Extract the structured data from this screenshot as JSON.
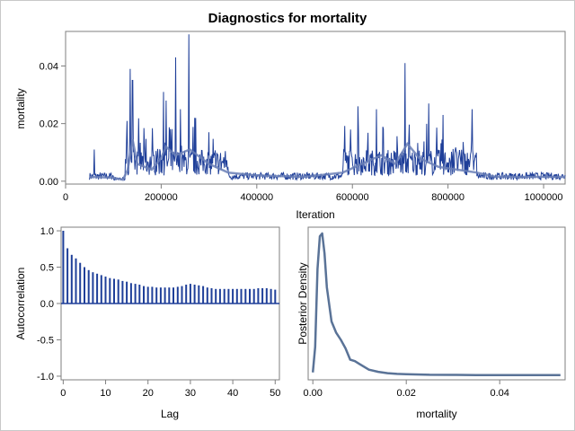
{
  "title": "Diagnostics for mortality",
  "colors": {
    "trace": "#1f3f99",
    "trace_smooth": "#6a7fb6",
    "acf_bar": "#1f3f99",
    "density": "#5a7397",
    "frame": "#7f7f7f"
  },
  "chart_data": [
    {
      "type": "line",
      "name": "trace",
      "xlabel": "Iteration",
      "ylabel": "mortality",
      "xlim": [
        0,
        1045000
      ],
      "ylim": [
        -0.001,
        0.052
      ],
      "xticks": [
        0,
        200000,
        400000,
        600000,
        800000,
        1000000
      ],
      "xtick_labels": [
        "0",
        "200000",
        "400000",
        "600000",
        "800000",
        "1000000"
      ],
      "yticks": [
        0,
        0.02,
        0.04
      ],
      "ytick_labels": [
        "0.00",
        "0.02",
        "0.04"
      ],
      "x_start": 50000,
      "x_end": 1045000,
      "burst_regions": [
        [
          125000,
          340000
        ],
        [
          580000,
          860000
        ]
      ],
      "peaks": [
        {
          "x": 60000,
          "y": 0.011
        },
        {
          "x": 135000,
          "y": 0.039
        },
        {
          "x": 140000,
          "y": 0.035
        },
        {
          "x": 205000,
          "y": 0.031
        },
        {
          "x": 210000,
          "y": 0.028
        },
        {
          "x": 230000,
          "y": 0.043
        },
        {
          "x": 240000,
          "y": 0.025
        },
        {
          "x": 258000,
          "y": 0.051
        },
        {
          "x": 270000,
          "y": 0.022
        },
        {
          "x": 300000,
          "y": 0.017
        },
        {
          "x": 612000,
          "y": 0.026
        },
        {
          "x": 650000,
          "y": 0.025
        },
        {
          "x": 710000,
          "y": 0.041
        },
        {
          "x": 760000,
          "y": 0.027
        },
        {
          "x": 790000,
          "y": 0.023
        },
        {
          "x": 850000,
          "y": 0.025
        }
      ],
      "smooth": [
        [
          50000,
          0.0015
        ],
        [
          100000,
          0.0012
        ],
        [
          120000,
          0.0005
        ],
        [
          130000,
          0.004
        ],
        [
          140000,
          0.0145
        ],
        [
          150000,
          0.006
        ],
        [
          180000,
          0.004
        ],
        [
          200000,
          0.008
        ],
        [
          210000,
          0.012
        ],
        [
          230000,
          0.009
        ],
        [
          260000,
          0.011
        ],
        [
          300000,
          0.006
        ],
        [
          340000,
          0.003
        ],
        [
          400000,
          0.002
        ],
        [
          500000,
          0.0015
        ],
        [
          580000,
          0.003
        ],
        [
          620000,
          0.006
        ],
        [
          660000,
          0.009
        ],
        [
          690000,
          0.006
        ],
        [
          715000,
          0.013
        ],
        [
          740000,
          0.008
        ],
        [
          780000,
          0.005
        ],
        [
          820000,
          0.004
        ],
        [
          860000,
          0.003
        ],
        [
          900000,
          0.0015
        ],
        [
          1045000,
          0.0015
        ]
      ]
    },
    {
      "type": "bar",
      "name": "autocorrelation",
      "xlabel": "Lag",
      "ylabel": "Autocorrelation",
      "xlim": [
        -0.5,
        51
      ],
      "ylim": [
        -1.05,
        1.05
      ],
      "xticks": [
        0,
        10,
        20,
        30,
        40,
        50
      ],
      "xtick_labels": [
        "0",
        "10",
        "20",
        "30",
        "40",
        "50"
      ],
      "yticks": [
        1.0,
        0.5,
        0.0,
        -0.5,
        -1.0
      ],
      "ytick_labels": [
        "1.0",
        "0.5",
        "0.0",
        "-0.5",
        "-1.0"
      ],
      "lags": [
        0,
        1,
        2,
        3,
        4,
        5,
        6,
        7,
        8,
        9,
        10,
        11,
        12,
        13,
        14,
        15,
        16,
        17,
        18,
        19,
        20,
        21,
        22,
        23,
        24,
        25,
        26,
        27,
        28,
        29,
        30,
        31,
        32,
        33,
        34,
        35,
        36,
        37,
        38,
        39,
        40,
        41,
        42,
        43,
        44,
        45,
        46,
        47,
        48,
        49,
        50
      ],
      "values": [
        1.0,
        0.76,
        0.67,
        0.62,
        0.56,
        0.5,
        0.46,
        0.43,
        0.41,
        0.39,
        0.37,
        0.35,
        0.34,
        0.33,
        0.31,
        0.3,
        0.28,
        0.27,
        0.26,
        0.24,
        0.23,
        0.23,
        0.22,
        0.22,
        0.22,
        0.22,
        0.22,
        0.23,
        0.24,
        0.26,
        0.27,
        0.26,
        0.25,
        0.24,
        0.22,
        0.21,
        0.2,
        0.2,
        0.2,
        0.2,
        0.2,
        0.2,
        0.2,
        0.2,
        0.2,
        0.2,
        0.21,
        0.21,
        0.21,
        0.2,
        0.19
      ]
    },
    {
      "type": "line",
      "name": "posterior-density",
      "xlabel": "mortality",
      "ylabel": "Posterior Density",
      "xlim": [
        -0.001,
        0.054
      ],
      "xticks": [
        0,
        0.02,
        0.04
      ],
      "xtick_labels": [
        "0.00",
        "0.02",
        "0.04"
      ],
      "x": [
        0,
        0.0005,
        0.001,
        0.0015,
        0.002,
        0.0025,
        0.003,
        0.004,
        0.005,
        0.006,
        0.007,
        0.008,
        0.009,
        0.01,
        0.012,
        0.014,
        0.016,
        0.018,
        0.02,
        0.025,
        0.03,
        0.035,
        0.04,
        0.045,
        0.05,
        0.053
      ],
      "y": [
        0.02,
        0.2,
        0.75,
        0.98,
        1.0,
        0.86,
        0.62,
        0.38,
        0.3,
        0.25,
        0.19,
        0.11,
        0.1,
        0.08,
        0.04,
        0.025,
        0.015,
        0.01,
        0.008,
        0.004,
        0.003,
        0.002,
        0.002,
        0.0015,
        0.0015,
        0.002
      ]
    }
  ]
}
